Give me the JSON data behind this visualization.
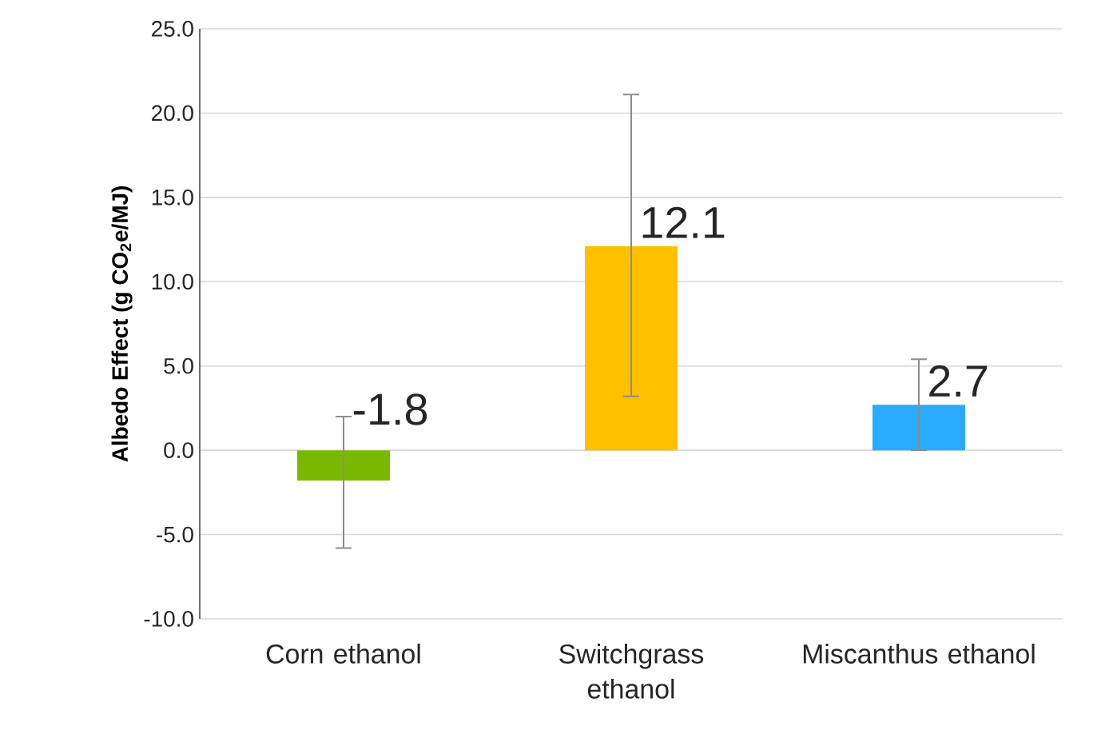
{
  "chart_data": {
    "type": "bar",
    "ylabel": "Albedo Effect (g CO$_{2}$e/MJ)",
    "categories": [
      "Corn ethanol",
      "Switchgrass ethanol",
      "Miscanthus ethanol"
    ],
    "values": [
      -1.8,
      12.1,
      2.7
    ],
    "colors": [
      "#7ab800",
      "#ffc000",
      "#2aabfd"
    ],
    "errors": [
      [
        -5.8,
        2.0
      ],
      [
        3.2,
        21.1
      ],
      [
        0.0,
        5.4
      ]
    ],
    "data_labels": true,
    "ylim": [
      -10,
      25
    ],
    "yticks": [
      {
        "value": -10,
        "label": "-10.0"
      },
      {
        "value": -5,
        "label": "-5.0"
      },
      {
        "value": 0,
        "label": "0.0"
      },
      {
        "value": 5,
        "label": "5.0"
      },
      {
        "value": 10,
        "label": "10.0"
      },
      {
        "value": 15,
        "label": "15.0"
      },
      {
        "value": 20,
        "label": "20.0"
      },
      {
        "value": 25,
        "label": "25.0"
      }
    ],
    "grid": "y"
  }
}
